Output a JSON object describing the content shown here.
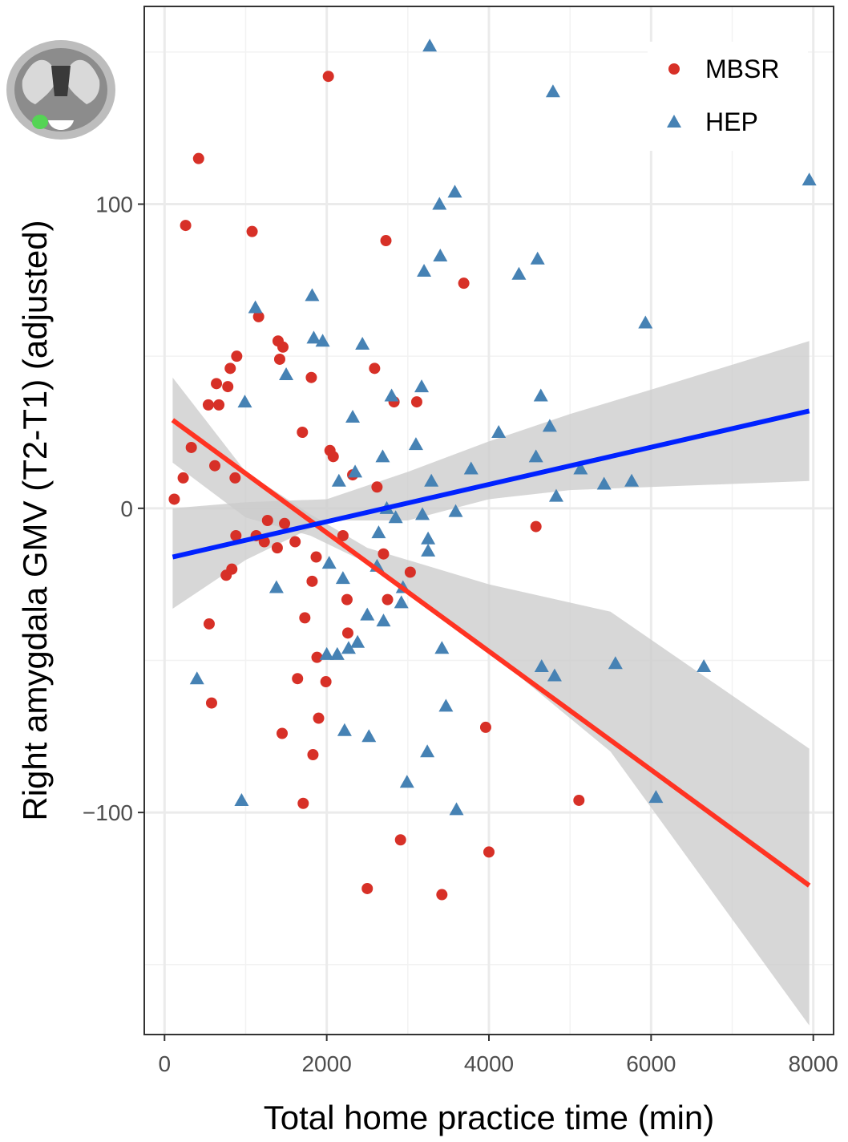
{
  "chart_data": {
    "type": "scatter",
    "title": "",
    "xlabel": "Total home practice time (min)",
    "ylabel": "Right amygdala GMV (T2-T1) (adjusted)",
    "xlim": [
      -250,
      8250
    ],
    "ylim": [
      -173,
      165
    ],
    "xticks": [
      0,
      2000,
      4000,
      6000,
      8000
    ],
    "xtick_labels": [
      "0",
      "2000",
      "4000",
      "6000",
      "8000"
    ],
    "yticks": [
      -100,
      0,
      100
    ],
    "ytick_labels": [
      "−100",
      "0",
      "100"
    ],
    "grid": true,
    "legend_position": "top-right",
    "inset_image": "coronal brain slice with right amygdala highlighted",
    "series": [
      {
        "name": "MBSR",
        "marker": "circle",
        "color": "#d73027",
        "fit": {
          "x0": 100,
          "y0": 29,
          "x1": 7950,
          "y1": -124,
          "band_color": "#cccccc"
        },
        "band": [
          [
            100,
            43,
            15
          ],
          [
            1000,
            12,
            -3
          ],
          [
            1800,
            -2,
            -9
          ],
          [
            2500,
            -13,
            -18
          ],
          [
            4000,
            -25,
            -47
          ],
          [
            5500,
            -34,
            -80
          ],
          [
            7950,
            -79,
            -170
          ]
        ],
        "points": [
          [
            120,
            3
          ],
          [
            230,
            10
          ],
          [
            260,
            93
          ],
          [
            330,
            20
          ],
          [
            420,
            115
          ],
          [
            540,
            34
          ],
          [
            550,
            -38
          ],
          [
            580,
            -64
          ],
          [
            620,
            14
          ],
          [
            640,
            41
          ],
          [
            670,
            34
          ],
          [
            760,
            -22
          ],
          [
            780,
            40
          ],
          [
            810,
            46
          ],
          [
            830,
            -20
          ],
          [
            870,
            10
          ],
          [
            880,
            -9
          ],
          [
            890,
            50
          ],
          [
            1080,
            91
          ],
          [
            1130,
            -9
          ],
          [
            1160,
            63
          ],
          [
            1230,
            -11
          ],
          [
            1270,
            -4
          ],
          [
            1390,
            -13
          ],
          [
            1400,
            55
          ],
          [
            1420,
            49
          ],
          [
            1450,
            -74
          ],
          [
            1460,
            53
          ],
          [
            1480,
            -5
          ],
          [
            1610,
            -11
          ],
          [
            1640,
            -56
          ],
          [
            1700,
            25
          ],
          [
            1710,
            -97
          ],
          [
            1730,
            -36
          ],
          [
            1810,
            43
          ],
          [
            1820,
            -24
          ],
          [
            1830,
            -81
          ],
          [
            1870,
            -16
          ],
          [
            1880,
            -49
          ],
          [
            1900,
            -69
          ],
          [
            1990,
            -57
          ],
          [
            2040,
            19
          ],
          [
            2080,
            17
          ],
          [
            2200,
            -9
          ],
          [
            2250,
            -30
          ],
          [
            2260,
            -41
          ],
          [
            2320,
            11
          ],
          [
            2500,
            -125
          ],
          [
            2590,
            46
          ],
          [
            2620,
            7
          ],
          [
            2700,
            -15
          ],
          [
            2730,
            88
          ],
          [
            2750,
            -30
          ],
          [
            2830,
            35
          ],
          [
            2910,
            -109
          ],
          [
            3030,
            -21
          ],
          [
            3110,
            35
          ],
          [
            3420,
            -127
          ],
          [
            3690,
            74
          ],
          [
            3960,
            -72
          ],
          [
            4000,
            -113
          ],
          [
            4580,
            -6
          ],
          [
            5110,
            -96
          ],
          [
            2020,
            142
          ]
        ]
      },
      {
        "name": "HEP",
        "marker": "triangle",
        "color": "#4682b4",
        "fit": {
          "x0": 100,
          "y0": -16,
          "x1": 7950,
          "y1": 32,
          "band_color": "#cccccc"
        },
        "band": [
          [
            100,
            0,
            -33
          ],
          [
            1000,
            2,
            -17
          ],
          [
            2000,
            3,
            -4
          ],
          [
            3000,
            12,
            -4
          ],
          [
            4000,
            22,
            3
          ],
          [
            5000,
            31,
            6
          ],
          [
            6000,
            39,
            7
          ],
          [
            7950,
            55,
            9
          ]
        ],
        "points": [
          [
            400,
            -56
          ],
          [
            950,
            -96
          ],
          [
            990,
            35
          ],
          [
            1120,
            66
          ],
          [
            1380,
            -26
          ],
          [
            1500,
            44
          ],
          [
            1820,
            70
          ],
          [
            1840,
            56
          ],
          [
            1950,
            55
          ],
          [
            2000,
            -48
          ],
          [
            2030,
            -18
          ],
          [
            2130,
            -48
          ],
          [
            2150,
            9
          ],
          [
            2200,
            -23
          ],
          [
            2220,
            -73
          ],
          [
            2270,
            -46
          ],
          [
            2320,
            30
          ],
          [
            2350,
            12
          ],
          [
            2380,
            -44
          ],
          [
            2440,
            54
          ],
          [
            2500,
            -35
          ],
          [
            2520,
            -75
          ],
          [
            2620,
            -19
          ],
          [
            2640,
            -8
          ],
          [
            2690,
            17
          ],
          [
            2700,
            -37
          ],
          [
            2740,
            0
          ],
          [
            2800,
            37
          ],
          [
            2850,
            -3
          ],
          [
            2920,
            -31
          ],
          [
            2940,
            -26
          ],
          [
            2990,
            -90
          ],
          [
            3100,
            21
          ],
          [
            3170,
            40
          ],
          [
            3180,
            -2
          ],
          [
            3200,
            78
          ],
          [
            3240,
            -80
          ],
          [
            3250,
            -10
          ],
          [
            3250,
            -14
          ],
          [
            3290,
            9
          ],
          [
            3270,
            152
          ],
          [
            3390,
            100
          ],
          [
            3400,
            83
          ],
          [
            3420,
            -46
          ],
          [
            3470,
            -65
          ],
          [
            3580,
            104
          ],
          [
            3600,
            -99
          ],
          [
            3780,
            13
          ],
          [
            3590,
            -1
          ],
          [
            4120,
            25
          ],
          [
            4370,
            77
          ],
          [
            4580,
            17
          ],
          [
            4600,
            82
          ],
          [
            4640,
            37
          ],
          [
            4650,
            -52
          ],
          [
            4750,
            27
          ],
          [
            4790,
            137
          ],
          [
            4810,
            -55
          ],
          [
            4830,
            4
          ],
          [
            5130,
            13
          ],
          [
            5420,
            8
          ],
          [
            5560,
            -51
          ],
          [
            5760,
            9
          ],
          [
            5930,
            61
          ],
          [
            6060,
            -95
          ],
          [
            6650,
            -52
          ],
          [
            7950,
            108
          ]
        ]
      }
    ]
  }
}
